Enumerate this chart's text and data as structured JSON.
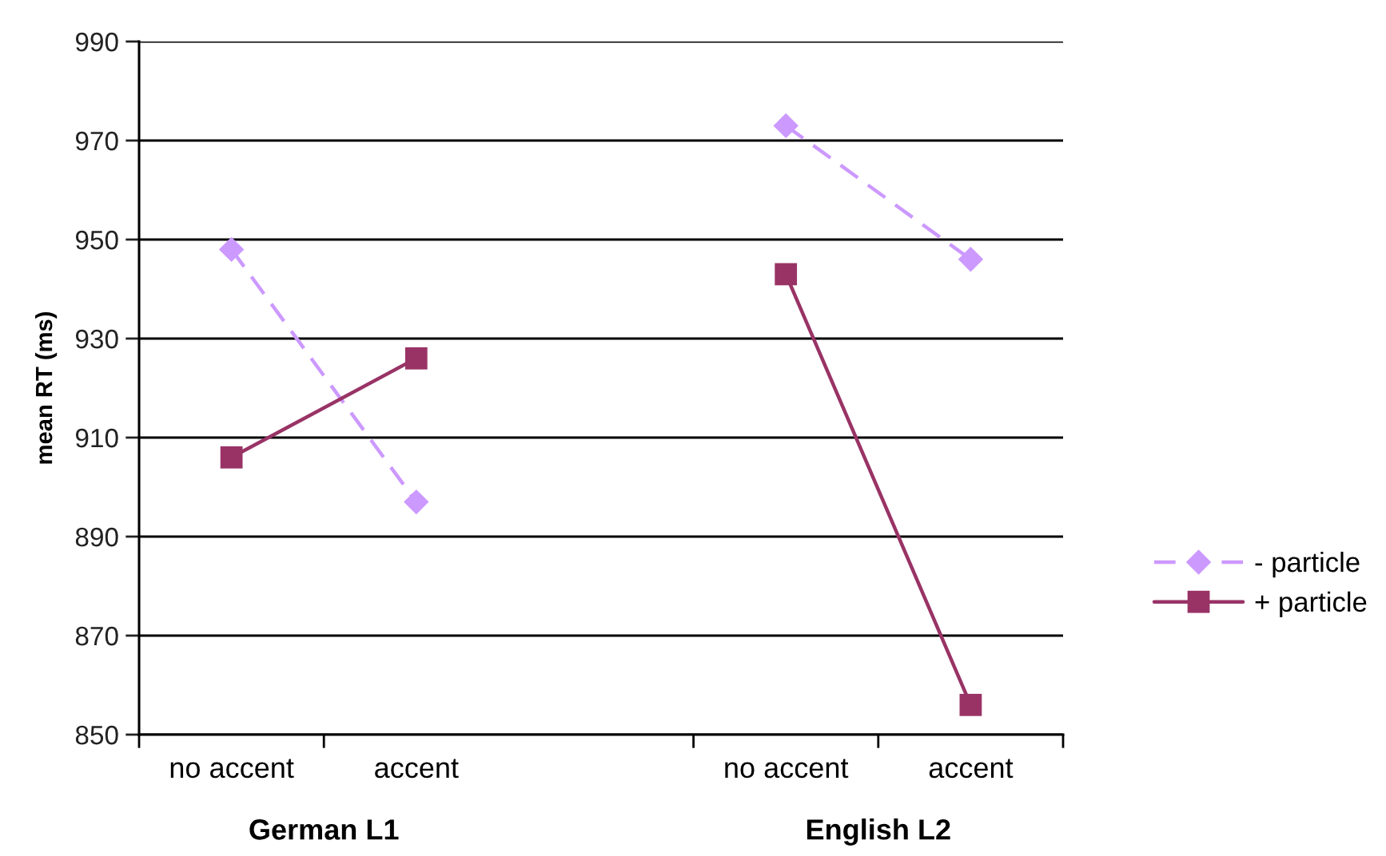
{
  "chart_data": {
    "type": "line",
    "ylabel": "mean RT (ms)",
    "categories": [
      "no accent",
      "accent",
      null,
      "no accent",
      "accent"
    ],
    "series": [
      {
        "name": "- particle",
        "color": "#cc99ff",
        "values": [
          948,
          897,
          null,
          973,
          946
        ],
        "marker": "diamond",
        "line_style": "dashed"
      },
      {
        "name": "+ particle",
        "color": "#993366",
        "values": [
          906,
          926,
          null,
          943,
          856
        ],
        "marker": "square",
        "line_style": "solid"
      }
    ],
    "ylim": [
      850,
      990
    ],
    "yticks": [
      850,
      870,
      890,
      910,
      930,
      950,
      970,
      990
    ],
    "grid": "y",
    "legend": "right",
    "annotations": [
      "German L1",
      "English L2"
    ]
  }
}
